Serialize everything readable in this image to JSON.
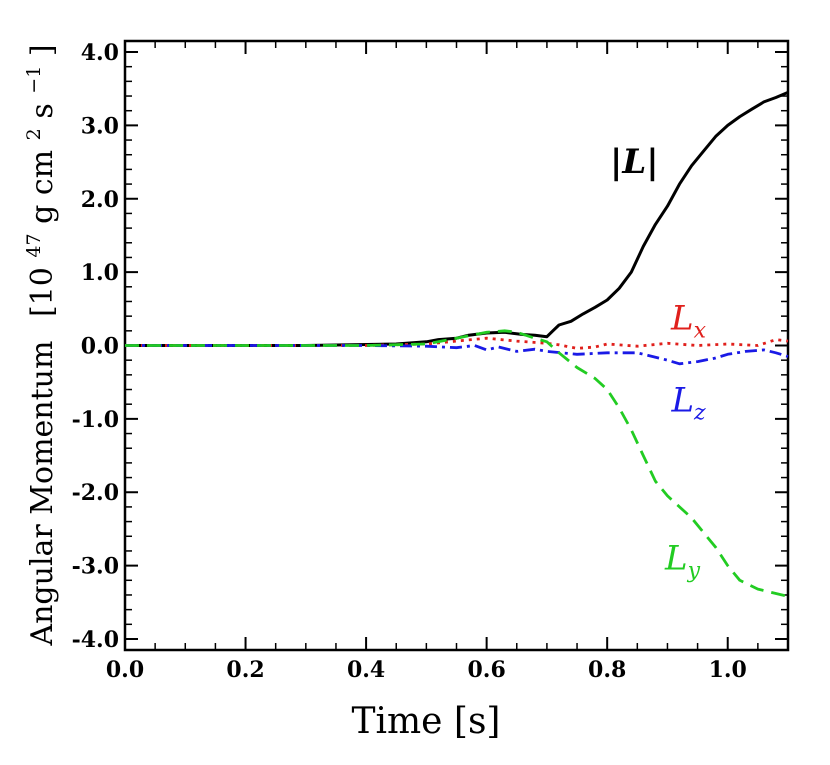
{
  "chart_data": {
    "type": "line",
    "title": "",
    "xlabel": "Time [s]",
    "ylabel": "Angular Momentum",
    "ylabel_unit": "[10",
    "ylabel_unit_sup1": "47",
    "ylabel_unit_mid": "g cm",
    "ylabel_unit_sup2": "2",
    "ylabel_unit_end": " s",
    "ylabel_unit_sup3": "−1",
    "ylabel_unit_close": "]",
    "xlim": [
      0.0,
      1.1
    ],
    "ylim": [
      -4.15,
      4.15
    ],
    "xticks": [
      0.0,
      0.2,
      0.4,
      0.6,
      0.8,
      1.0
    ],
    "xtick_labels": [
      "0.0",
      "0.2",
      "0.4",
      "0.6",
      "0.8",
      "1.0"
    ],
    "yticks": [
      4.0,
      3.0,
      2.0,
      1.0,
      0.0,
      -1.0,
      -2.0,
      -3.0,
      -4.0
    ],
    "ytick_labels": [
      "4.0",
      "3.0",
      "2.0",
      "1.0",
      "0.0",
      "-1.0",
      "-2.0",
      "-3.0",
      "-4.0"
    ],
    "series": [
      {
        "name": "|L|",
        "label_main": "|L|",
        "label_sub": "",
        "color": "#000000",
        "dash": "none",
        "bold": true,
        "label_at": [
          0.845,
          2.35
        ],
        "x": [
          0.0,
          0.3,
          0.45,
          0.5,
          0.52,
          0.55,
          0.57,
          0.6,
          0.63,
          0.66,
          0.68,
          0.7,
          0.71,
          0.72,
          0.74,
          0.76,
          0.78,
          0.8,
          0.82,
          0.84,
          0.86,
          0.88,
          0.9,
          0.92,
          0.94,
          0.96,
          0.98,
          1.0,
          1.02,
          1.04,
          1.06,
          1.08,
          1.1
        ],
        "y": [
          0.0,
          0.0,
          0.02,
          0.05,
          0.08,
          0.1,
          0.14,
          0.17,
          0.18,
          0.15,
          0.14,
          0.12,
          0.2,
          0.28,
          0.33,
          0.43,
          0.52,
          0.62,
          0.78,
          1.0,
          1.35,
          1.65,
          1.9,
          2.2,
          2.45,
          2.65,
          2.85,
          3.0,
          3.12,
          3.22,
          3.32,
          3.38,
          3.45
        ]
      },
      {
        "name": "Lx",
        "label_main": "L",
        "label_sub": "x",
        "color": "#e0201c",
        "dash": "3,5",
        "bold": false,
        "label_at": [
          0.935,
          0.22
        ],
        "x": [
          0.0,
          0.4,
          0.5,
          0.55,
          0.6,
          0.65,
          0.7,
          0.72,
          0.75,
          0.78,
          0.8,
          0.85,
          0.9,
          0.95,
          1.0,
          1.05,
          1.08,
          1.1
        ],
        "y": [
          0.0,
          0.0,
          0.02,
          0.06,
          0.1,
          0.06,
          0.03,
          0.01,
          -0.04,
          -0.02,
          0.02,
          -0.01,
          0.03,
          0.0,
          0.02,
          0.0,
          0.08,
          0.06
        ]
      },
      {
        "name": "Lz",
        "label_main": "L",
        "label_sub": "z",
        "color": "#1a1ae6",
        "dash": "12,5,3,5",
        "bold": false,
        "label_at": [
          0.935,
          -0.9
        ],
        "x": [
          0.0,
          0.4,
          0.5,
          0.55,
          0.58,
          0.6,
          0.62,
          0.65,
          0.68,
          0.7,
          0.75,
          0.8,
          0.85,
          0.9,
          0.92,
          0.95,
          0.98,
          1.0,
          1.03,
          1.06,
          1.08,
          1.1
        ],
        "y": [
          0.0,
          0.0,
          -0.01,
          -0.03,
          0.0,
          -0.06,
          -0.02,
          -0.08,
          -0.05,
          -0.08,
          -0.12,
          -0.1,
          -0.1,
          -0.2,
          -0.25,
          -0.22,
          -0.17,
          -0.12,
          -0.08,
          -0.06,
          -0.1,
          -0.15
        ]
      },
      {
        "name": "Ly",
        "label_main": "L",
        "label_sub": "y",
        "color": "#22cc22",
        "dash": "14,8",
        "bold": false,
        "label_at": [
          0.925,
          -3.05
        ],
        "x": [
          0.0,
          0.4,
          0.5,
          0.55,
          0.6,
          0.63,
          0.65,
          0.68,
          0.7,
          0.72,
          0.75,
          0.78,
          0.8,
          0.82,
          0.84,
          0.86,
          0.88,
          0.9,
          0.92,
          0.94,
          0.96,
          0.98,
          1.0,
          1.02,
          1.05,
          1.08,
          1.1
        ],
        "y": [
          0.0,
          0.0,
          0.02,
          0.1,
          0.18,
          0.2,
          0.18,
          0.1,
          0.05,
          -0.1,
          -0.3,
          -0.45,
          -0.6,
          -0.85,
          -1.15,
          -1.5,
          -1.85,
          -2.05,
          -2.2,
          -2.35,
          -2.55,
          -2.75,
          -3.0,
          -3.2,
          -3.32,
          -3.38,
          -3.42
        ]
      }
    ]
  }
}
